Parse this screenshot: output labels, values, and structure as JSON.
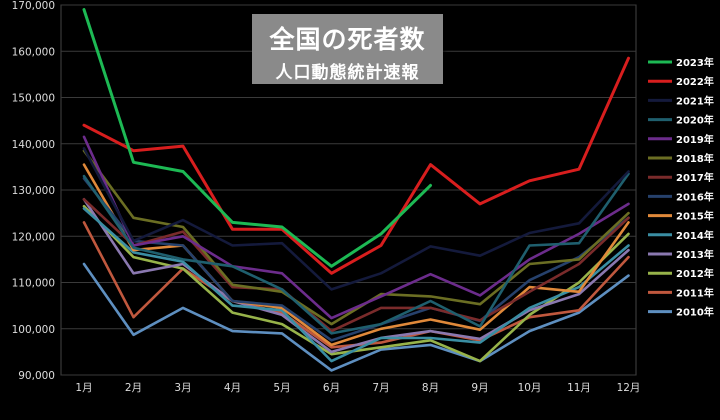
{
  "title": "全国の死者数",
  "subtitle": "人口動態統計速報",
  "chart_data": {
    "type": "line",
    "categories": [
      "1月",
      "2月",
      "3月",
      "4月",
      "5月",
      "6月",
      "7月",
      "8月",
      "9月",
      "10月",
      "11月",
      "12月"
    ],
    "ylim": [
      90000,
      170000
    ],
    "yticks": [
      "90,000",
      "100,000",
      "110,000",
      "120,000",
      "130,000",
      "140,000",
      "150,000",
      "160,000",
      "170,000"
    ],
    "ytick_values": [
      90000,
      100000,
      110000,
      120000,
      130000,
      140000,
      150000,
      160000,
      170000
    ],
    "grid": true,
    "legend_position": "right",
    "series": [
      {
        "name": "2023年",
        "color": "#1db954",
        "values": [
          169000,
          136000,
          134000,
          123000,
          122000,
          113500,
          120500,
          131000,
          null,
          null,
          null,
          null
        ]
      },
      {
        "name": "2022年",
        "color": "#d81e1e",
        "values": [
          144000,
          138500,
          139500,
          121500,
          121500,
          112000,
          118000,
          135500,
          127000,
          132000,
          134500,
          158500
        ]
      },
      {
        "name": "2021年",
        "color": "#141a3c",
        "values": [
          139000,
          119000,
          123500,
          118000,
          118500,
          108500,
          112000,
          117800,
          115800,
          120700,
          122800,
          134000
        ]
      },
      {
        "name": "2020年",
        "color": "#1f5f6e",
        "values": [
          133000,
          117500,
          115000,
          113500,
          108500,
          99000,
          101000,
          106000,
          100500,
          118000,
          118500,
          133500
        ]
      },
      {
        "name": "2019年",
        "color": "#6c2c8c",
        "values": [
          141500,
          118000,
          120000,
          113500,
          112000,
          102300,
          107000,
          111800,
          107200,
          115000,
          120500,
          127000
        ]
      },
      {
        "name": "2018年",
        "color": "#6b6e23",
        "values": [
          138500,
          124000,
          122000,
          109500,
          108000,
          101000,
          107500,
          107000,
          105300,
          114000,
          115000,
          125000
        ]
      },
      {
        "name": "2017年",
        "color": "#7a2b2b",
        "values": [
          128000,
          118000,
          121000,
          109000,
          108500,
          99500,
          104500,
          104500,
          101800,
          108000,
          114000,
          124000
        ]
      },
      {
        "name": "2016年",
        "color": "#26416c",
        "values": [
          132500,
          119000,
          118000,
          106000,
          105000,
          97500,
          101000,
          104500,
          101700,
          110500,
          115500,
          124000
        ]
      },
      {
        "name": "2015年",
        "color": "#e0893a",
        "values": [
          135500,
          117000,
          118000,
          106000,
          104500,
          96500,
          100000,
          102000,
          99800,
          109000,
          108000,
          123000
        ]
      },
      {
        "name": "2014年",
        "color": "#3a8ea3",
        "values": [
          126000,
          116500,
          114500,
          105000,
          104000,
          93000,
          98000,
          98000,
          97000,
          104500,
          109000,
          118000
        ]
      },
      {
        "name": "2013年",
        "color": "#8a78b0",
        "values": [
          128000,
          112000,
          114000,
          106000,
          103000,
          95000,
          98000,
          99500,
          97800,
          104000,
          107500,
          117000
        ]
      },
      {
        "name": "2012年",
        "color": "#97b34a",
        "values": [
          126500,
          115500,
          113000,
          103500,
          101000,
          94500,
          96000,
          97500,
          93000,
          103000,
          110000,
          120500
        ]
      },
      {
        "name": "2011年",
        "color": "#c0583e",
        "values": [
          123000,
          102500,
          113000,
          106000,
          103500,
          96000,
          97000,
          99500,
          97500,
          102500,
          104000,
          115500
        ]
      },
      {
        "name": "2010年",
        "color": "#5e8fc0",
        "values": [
          114000,
          98700,
          104500,
          99500,
          99000,
          91000,
          95500,
          96500,
          93000,
          99500,
          103500,
          111500
        ]
      }
    ]
  }
}
